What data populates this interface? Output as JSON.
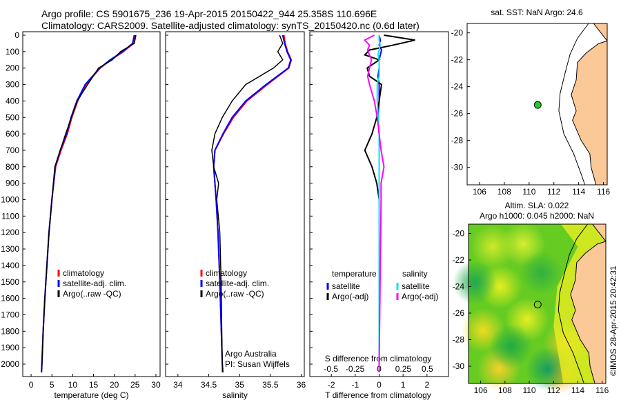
{
  "header": {
    "line1": "Argo profile: CS 5901675_236 19-Apr-2015 20150422_944 25.358S 110.696E",
    "line2": "Climatology: CARS2009. Satellite-adjusted climatology: synTS_20150420.nc (0.6d later)"
  },
  "colors": {
    "climatology": "#ff0000",
    "satellite": "#0000ff",
    "argo": "#000000",
    "sal_satellite": "#00e5ee",
    "sal_argo": "#ff00ff",
    "land": "#fbc898",
    "marker": "#22cc22"
  },
  "credits": {
    "org": "Argo Australia",
    "pi": "PI: Susan Wijffels",
    "stamp": "©IMOS 28-Apr-2015 20:42:31"
  },
  "chart_data": [
    {
      "type": "line",
      "id": "temperature",
      "xlabel": "temperature (deg C)",
      "ylabel": "",
      "xlim": [
        -2,
        31
      ],
      "ylim": [
        2060,
        0
      ],
      "xticks": [
        0,
        5,
        10,
        15,
        20,
        25,
        30
      ],
      "yticks": [
        0,
        100,
        200,
        300,
        400,
        500,
        600,
        700,
        800,
        900,
        1000,
        1100,
        1200,
        1300,
        1400,
        1500,
        1600,
        1700,
        1800,
        1900,
        2000
      ],
      "legend": [
        "climatology",
        "satellite-adj. clim.",
        "Argo(..raw -QC)"
      ],
      "depth": [
        0,
        50,
        100,
        150,
        200,
        300,
        400,
        500,
        600,
        700,
        800,
        1000,
        1200,
        1400,
        1600,
        1800,
        2000,
        2050
      ],
      "series": [
        {
          "name": "climatology",
          "values": [
            25,
            24.6,
            22.2,
            19.2,
            16.6,
            13.2,
            11.2,
            9.8,
            8.7,
            7.2,
            5.9,
            5.0,
            4.3,
            3.8,
            3.3,
            2.9,
            2.6,
            2.5
          ]
        },
        {
          "name": "satellite-adj. clim.",
          "values": [
            24.8,
            24.4,
            22.0,
            19.0,
            16.5,
            13.0,
            11.0,
            9.6,
            8.5,
            7.0,
            5.8,
            5.0,
            4.3,
            3.8,
            3.3,
            2.9,
            2.6,
            2.5
          ]
        },
        {
          "name": "Argo(..raw -QC)",
          "values": [
            25.2,
            24.8,
            21.5,
            19.5,
            16.2,
            13.6,
            11.1,
            9.7,
            8.3,
            7.0,
            5.7,
            5.0,
            4.3,
            3.8,
            3.3,
            2.9,
            2.6,
            2.5
          ]
        }
      ]
    },
    {
      "type": "line",
      "id": "salinity",
      "xlabel": "salinity",
      "xlim": [
        33.8,
        36.05
      ],
      "ylim": [
        2060,
        0
      ],
      "xticks": [
        34,
        34.5,
        35,
        35.5,
        36
      ],
      "legend": [
        "climatology",
        "satellite-adj. clim.",
        "Argo(..raw -QC)"
      ],
      "depth": [
        0,
        50,
        100,
        150,
        200,
        300,
        400,
        500,
        600,
        700,
        800,
        900,
        1000,
        1200,
        1500,
        2000,
        2050
      ],
      "series": [
        {
          "name": "climatology",
          "values": [
            35.72,
            35.74,
            35.78,
            35.84,
            35.8,
            35.45,
            35.12,
            34.9,
            34.74,
            34.6,
            34.58,
            34.6,
            34.62,
            34.65,
            34.68,
            34.72,
            34.73
          ]
        },
        {
          "name": "satellite-adj. clim.",
          "values": [
            35.7,
            35.73,
            35.77,
            35.83,
            35.79,
            35.43,
            35.1,
            34.88,
            34.73,
            34.6,
            34.58,
            34.6,
            34.62,
            34.65,
            34.68,
            34.72,
            34.73
          ]
        },
        {
          "name": "Argo(..raw -QC)",
          "values": [
            35.65,
            35.7,
            35.62,
            35.7,
            35.55,
            35.1,
            34.88,
            34.72,
            34.6,
            34.55,
            34.58,
            34.66,
            34.63,
            34.68,
            34.7,
            34.72,
            34.72
          ]
        }
      ]
    },
    {
      "type": "line",
      "id": "difference",
      "xlabel": "T difference from climatology",
      "x2label": "S difference from climatology",
      "xlim": [
        -2.9,
        2.9
      ],
      "x2lim": [
        -0.72,
        0.72
      ],
      "ylim": [
        2060,
        0
      ],
      "xticks": [
        -2,
        -1,
        0,
        1,
        2
      ],
      "x2ticks": [
        "-0.5",
        "-0.25",
        "0",
        "0.25",
        "0.5"
      ],
      "legend_headers": [
        "temperature",
        "salinity"
      ],
      "legend": [
        "satellite",
        "Argo(-adj)",
        "satellite",
        "Argo(-adj)"
      ],
      "depth": [
        0,
        30,
        60,
        90,
        120,
        150,
        200,
        250,
        300,
        400,
        500,
        600,
        700,
        800,
        900,
        1000,
        1500,
        2000,
        2050
      ],
      "series": [
        {
          "name": "T satellite",
          "values": [
            0,
            0.05,
            0,
            0.1,
            0.05,
            0,
            0,
            -0.05,
            0,
            0,
            -0.05,
            0,
            0,
            0,
            0,
            0,
            0,
            0,
            0
          ]
        },
        {
          "name": "T Argo(-adj)",
          "values": [
            0.2,
            1.5,
            0.6,
            -0.4,
            -0.6,
            0,
            -0.5,
            -0.4,
            0.1,
            0,
            -0.1,
            -0.3,
            -0.6,
            -0.3,
            -0.1,
            0,
            0,
            0,
            0
          ]
        },
        {
          "name": "S satellite",
          "values": [
            0,
            0,
            0.01,
            0,
            -0.01,
            0,
            0,
            0,
            -0.02,
            -0.02,
            -0.01,
            0,
            0,
            0,
            0,
            0,
            0,
            0,
            0
          ]
        },
        {
          "name": "S Argo(-adj)",
          "values": [
            -0.05,
            -0.15,
            -0.1,
            -0.12,
            -0.1,
            -0.08,
            -0.1,
            -0.12,
            -0.1,
            -0.05,
            -0.02,
            0,
            0.02,
            0.05,
            0.02,
            0.02,
            0.01,
            0,
            0
          ]
        }
      ]
    },
    {
      "type": "map",
      "id": "sst-map",
      "title": "sat. SST: NaN Argo: 24.6",
      "xlim": [
        105,
        116.3
      ],
      "ylim": [
        -31.3,
        -19.3
      ],
      "xticks": [
        106,
        108,
        110,
        112,
        114,
        116
      ],
      "yticks": [
        -20,
        -22,
        -24,
        -26,
        -28,
        -30
      ],
      "point": {
        "lon": 110.696,
        "lat": -25.358
      }
    },
    {
      "type": "heatmap",
      "id": "sla-map",
      "title": "Altim. SLA: 0.022",
      "subtitle": "Argo h1000: 0.045 h2000: NaN",
      "xlim": [
        105,
        116.3
      ],
      "ylim": [
        -31.3,
        -19.3
      ],
      "xticks": [
        106,
        108,
        110,
        112,
        114,
        116
      ],
      "yticks": [
        -20,
        -22,
        -24,
        -26,
        -28,
        -30
      ],
      "point": {
        "lon": 110.696,
        "lat": -25.358
      }
    }
  ]
}
